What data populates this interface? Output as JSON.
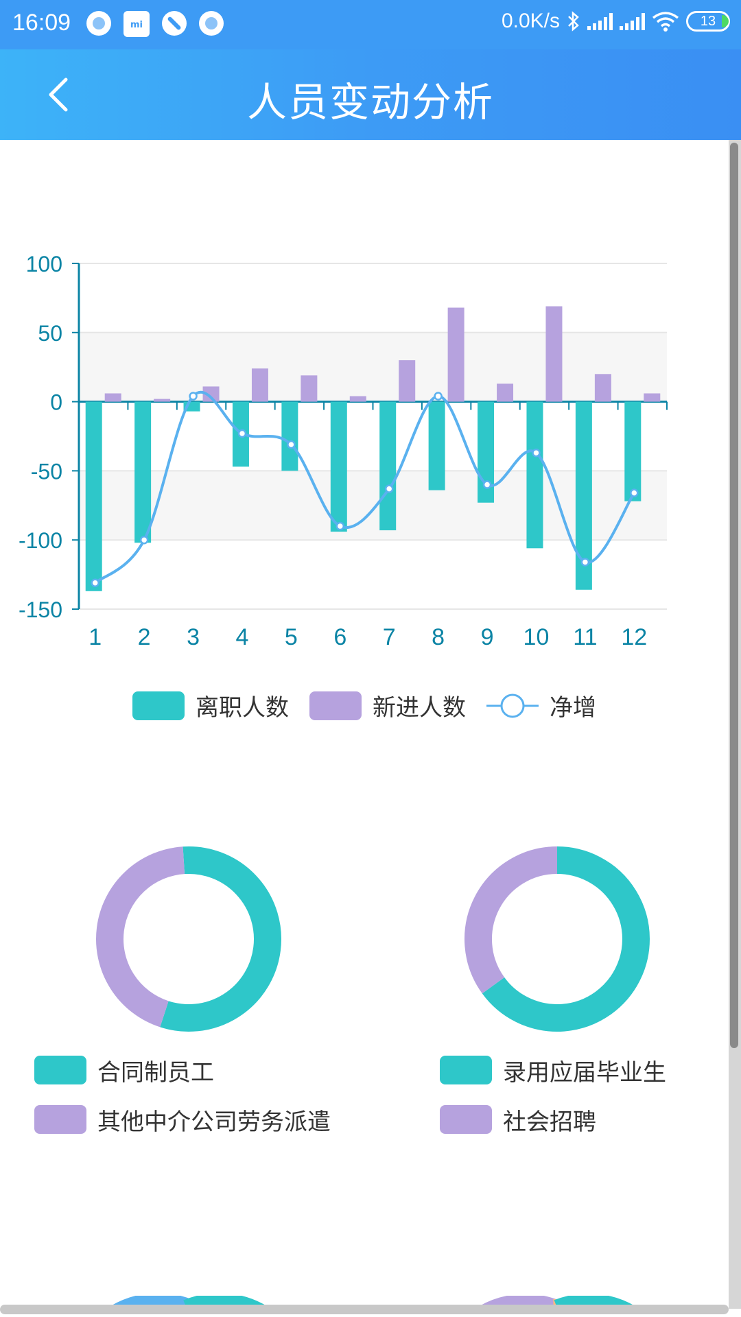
{
  "status_bar": {
    "time": "16:09",
    "network_speed": "0.0K/s",
    "battery": "13",
    "icons": [
      "notification-icon",
      "mi-icon",
      "block-icon",
      "notification-icon",
      "bluetooth-icon",
      "signal-icon",
      "signal-icon",
      "wifi-icon",
      "battery-icon"
    ]
  },
  "app_bar": {
    "title": "人员变动分析",
    "back_icon": "chevron-left-icon"
  },
  "colors": {
    "accent": "#3d9bf5",
    "leave": "#2ec7c9",
    "new": "#b6a2de",
    "net": "#5ab1ef"
  },
  "chart_data": [
    {
      "type": "bar",
      "categories": [
        "1",
        "2",
        "3",
        "4",
        "5",
        "6",
        "7",
        "8",
        "9",
        "10",
        "11",
        "12"
      ],
      "series": [
        {
          "name": "离职人数",
          "type": "bar",
          "values": [
            -137,
            -102,
            -7,
            -47,
            -50,
            -94,
            -93,
            -64,
            -73,
            -106,
            -136,
            -72
          ]
        },
        {
          "name": "新进人数",
          "type": "bar",
          "values": [
            6,
            2,
            11,
            24,
            19,
            4,
            30,
            68,
            13,
            69,
            20,
            6
          ]
        },
        {
          "name": "净增",
          "type": "line",
          "values": [
            -131,
            -100,
            4,
            -23,
            -31,
            -90,
            -63,
            4,
            -60,
            -37,
            -116,
            -66
          ]
        }
      ],
      "yticks": [
        "100",
        "50",
        "0",
        "-50",
        "-100",
        "-150"
      ],
      "ylim": [
        -150,
        100
      ],
      "legend": [
        "离职人数",
        "新进人数",
        "净增"
      ],
      "legend_position": "bottom"
    },
    {
      "type": "pie",
      "labels": [
        "合同制员工",
        "其他中介公司劳务派遣"
      ],
      "values": [
        56,
        44
      ],
      "donut": true
    },
    {
      "type": "pie",
      "labels": [
        "录用应届毕业生",
        "社会招聘"
      ],
      "values": [
        65,
        35
      ],
      "donut": true
    }
  ],
  "legend_main": {
    "leave": "离职人数",
    "new": "新进人数",
    "net": "净增"
  },
  "donut_left_legend": {
    "item1": "合同制员工",
    "item2": "其他中介公司劳务派遣"
  },
  "donut_right_legend": {
    "item1": "录用应届毕业生",
    "item2": "社会招聘"
  }
}
